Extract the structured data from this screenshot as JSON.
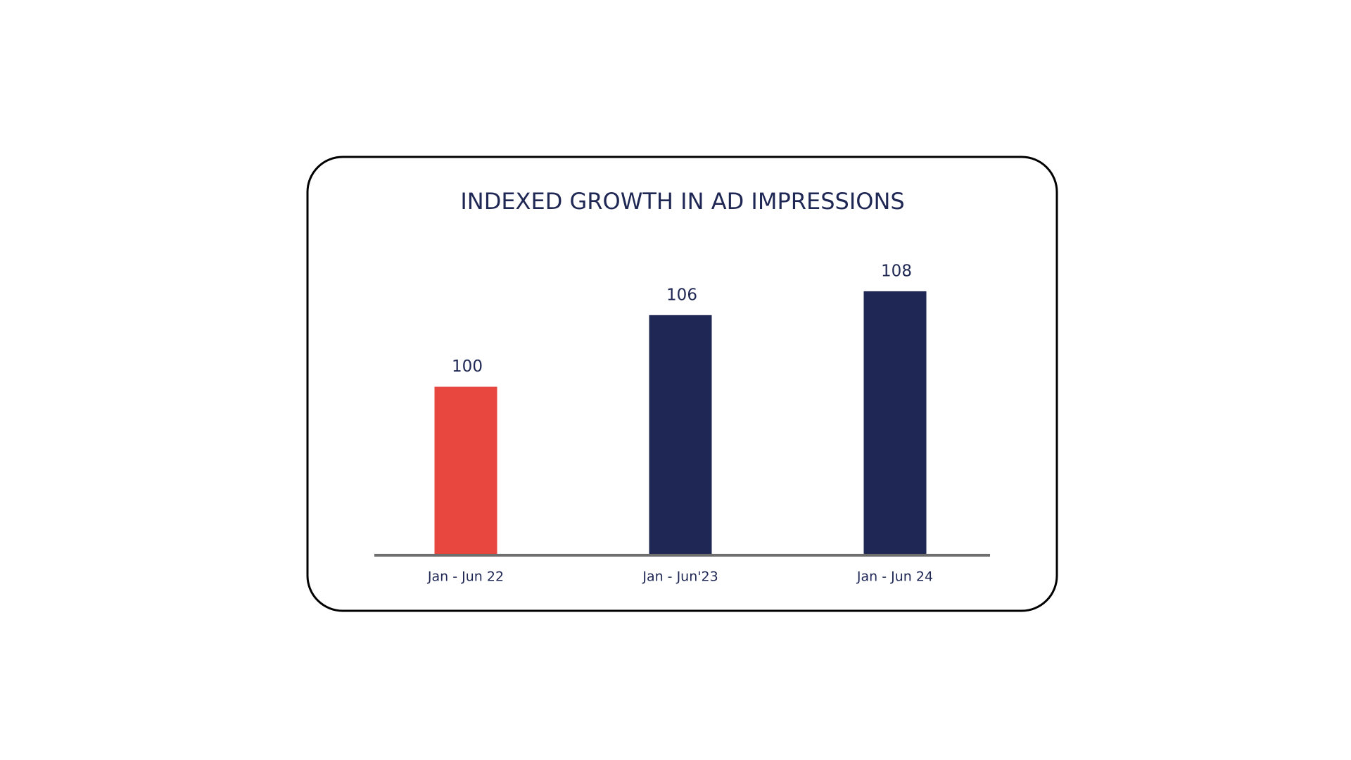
{
  "chart_data": {
    "type": "bar",
    "title": "INDEXED GROWTH IN AD IMPRESSIONS",
    "categories": [
      "Jan - Jun 22",
      "Jan - Jun'23",
      "Jan - Jun 24"
    ],
    "values": [
      100,
      106,
      108
    ],
    "colors": [
      "#e8473f",
      "#1f2754",
      "#1f2754"
    ],
    "ylim": [
      86,
      110
    ],
    "grid": false
  }
}
